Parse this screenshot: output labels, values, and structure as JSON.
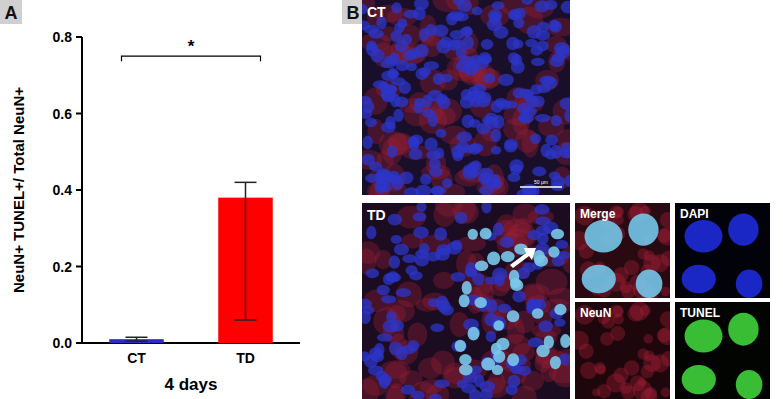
{
  "chart_data": {
    "type": "bar",
    "categories": [
      "CT",
      "TD"
    ],
    "values": [
      0.01,
      0.38
    ],
    "error_low": [
      0.005,
      0.06
    ],
    "error_high": [
      0.015,
      0.42
    ],
    "colors": [
      "#2b2bc0",
      "#ff0000"
    ],
    "y_label": "NeuN+ TUNEL+/ Total NeuN+",
    "x_label": "4 days",
    "ylim": [
      0,
      0.8
    ],
    "yticks": [
      {
        "value": 0,
        "label": "0.0"
      },
      0.2,
      0.4,
      0.6,
      0.8
    ],
    "grid": false,
    "annotations": [
      {
        "text": "*",
        "y": 0.75
      }
    ]
  },
  "figure": {
    "panel_labels": [
      "A",
      "B"
    ],
    "images": [
      {
        "label": "CT",
        "scale_bar": "50 µm"
      },
      {
        "label": "TD"
      },
      {
        "label": "Merge"
      },
      {
        "label": "DAPI"
      },
      {
        "label": "NeuN"
      },
      {
        "label": "TUNEL"
      }
    ]
  }
}
